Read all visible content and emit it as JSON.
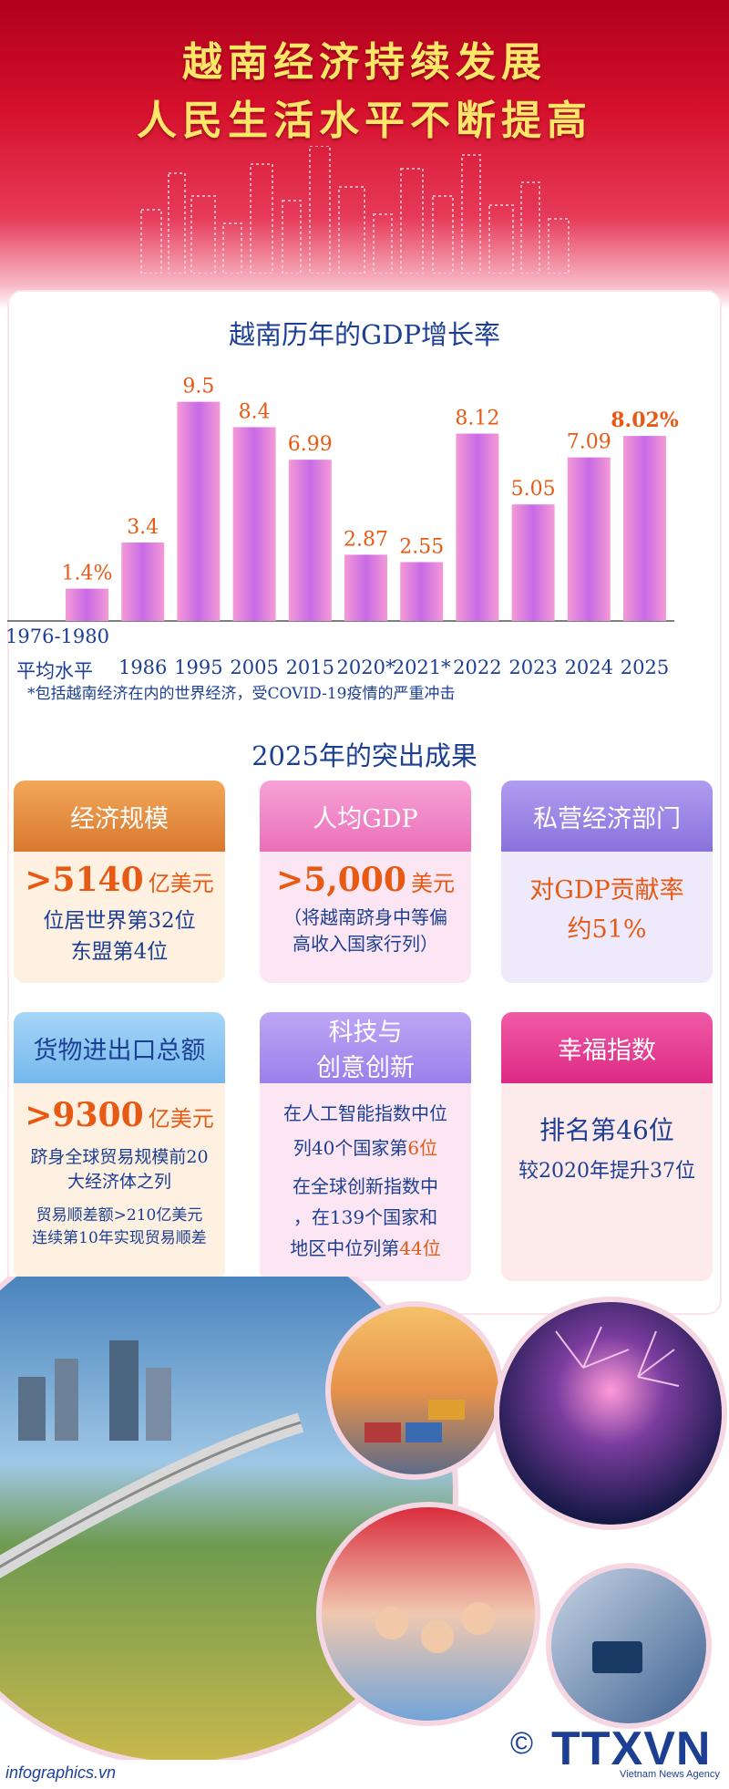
{
  "header": {
    "title_line1": "越南经济持续发展",
    "title_line2": "人民生活水平不断提高"
  },
  "gdp_section": {
    "title": "越南历年的GDP增长率"
  },
  "chart_data": {
    "type": "bar",
    "title": "越南历年的GDP增长率",
    "categories": [
      "1976-1980 平均水平",
      "1986",
      "1995",
      "2005",
      "2015",
      "2020*",
      "2021*",
      "2022",
      "2023",
      "2024",
      "2025"
    ],
    "values": [
      1.4,
      3.4,
      9.5,
      8.4,
      6.99,
      2.87,
      2.55,
      8.12,
      5.05,
      7.09,
      8.02
    ],
    "value_labels": [
      "1.4%",
      "3.4",
      "9.5",
      "8.4",
      "6.99",
      "2.87",
      "2.55",
      "8.12",
      "5.05",
      "7.09",
      "8.02%"
    ],
    "highlight_index": 10,
    "bar_color": "#e06ad9",
    "ylim": [
      0,
      10
    ]
  },
  "category_display": [
    "1976-1980",
    "平均水平",
    "1986",
    "1995",
    "2005",
    "2015",
    "2020*",
    "2021*",
    "2022",
    "2023",
    "2024",
    "2025"
  ],
  "footnote": "*包括越南经济在内的世界经济，受COVID-19疫情的严重冲击",
  "achievements": {
    "title": "2025年的突出成果",
    "economy": {
      "head": "经济规模",
      "value": ">5140",
      "unit": "亿美元",
      "line1": "位居世界第32位",
      "line2": "东盟第4位"
    },
    "gdp_per_capita": {
      "head": "人均GDP",
      "value": ">5,000",
      "unit": "美元",
      "line1": "（将越南跻身中等偏",
      "line2": "高收入国家行列）"
    },
    "private_sector": {
      "head": "私营经济部门",
      "line1": "对GDP贡献率",
      "line2": "约51%"
    },
    "trade": {
      "head": "货物进出口总额",
      "value": ">9300",
      "unit": "亿美元",
      "line1": "跻身全球贸易规模前20",
      "line2": "大经济体之列",
      "line3": "贸易顺差额>210亿美元",
      "line4": "连续第10年实现贸易顺差"
    },
    "innovation": {
      "head_line1": "科技与",
      "head_line2": "创意创新",
      "line1": "在人工智能指数中位",
      "line2a": "列40个国家第",
      "line2b": "6位",
      "line3": "在全球创新指数中",
      "line4": "，在139个国家和",
      "line5a": "地区中位列第",
      "line5b": "44位"
    },
    "happiness": {
      "head": "幸福指数",
      "line1": "排名第46位",
      "line2": "较2020年提升37位"
    }
  },
  "footer": {
    "site": "infographics.vn",
    "copyright": "©",
    "logo": "TTXVN",
    "agency": "Vietnam News Agency"
  },
  "colors": {
    "header_red": "#d5102c",
    "title_yellow": "#ffe66b",
    "navy": "#1c3f93",
    "orange": "#e65a14",
    "card_orange": "#e08a3a",
    "card_pink": "#f07fc4",
    "card_purple": "#9a84e6",
    "card_blue": "#7ec0ee",
    "card_violet": "#a98ef0",
    "card_magenta": "#e8328e"
  }
}
